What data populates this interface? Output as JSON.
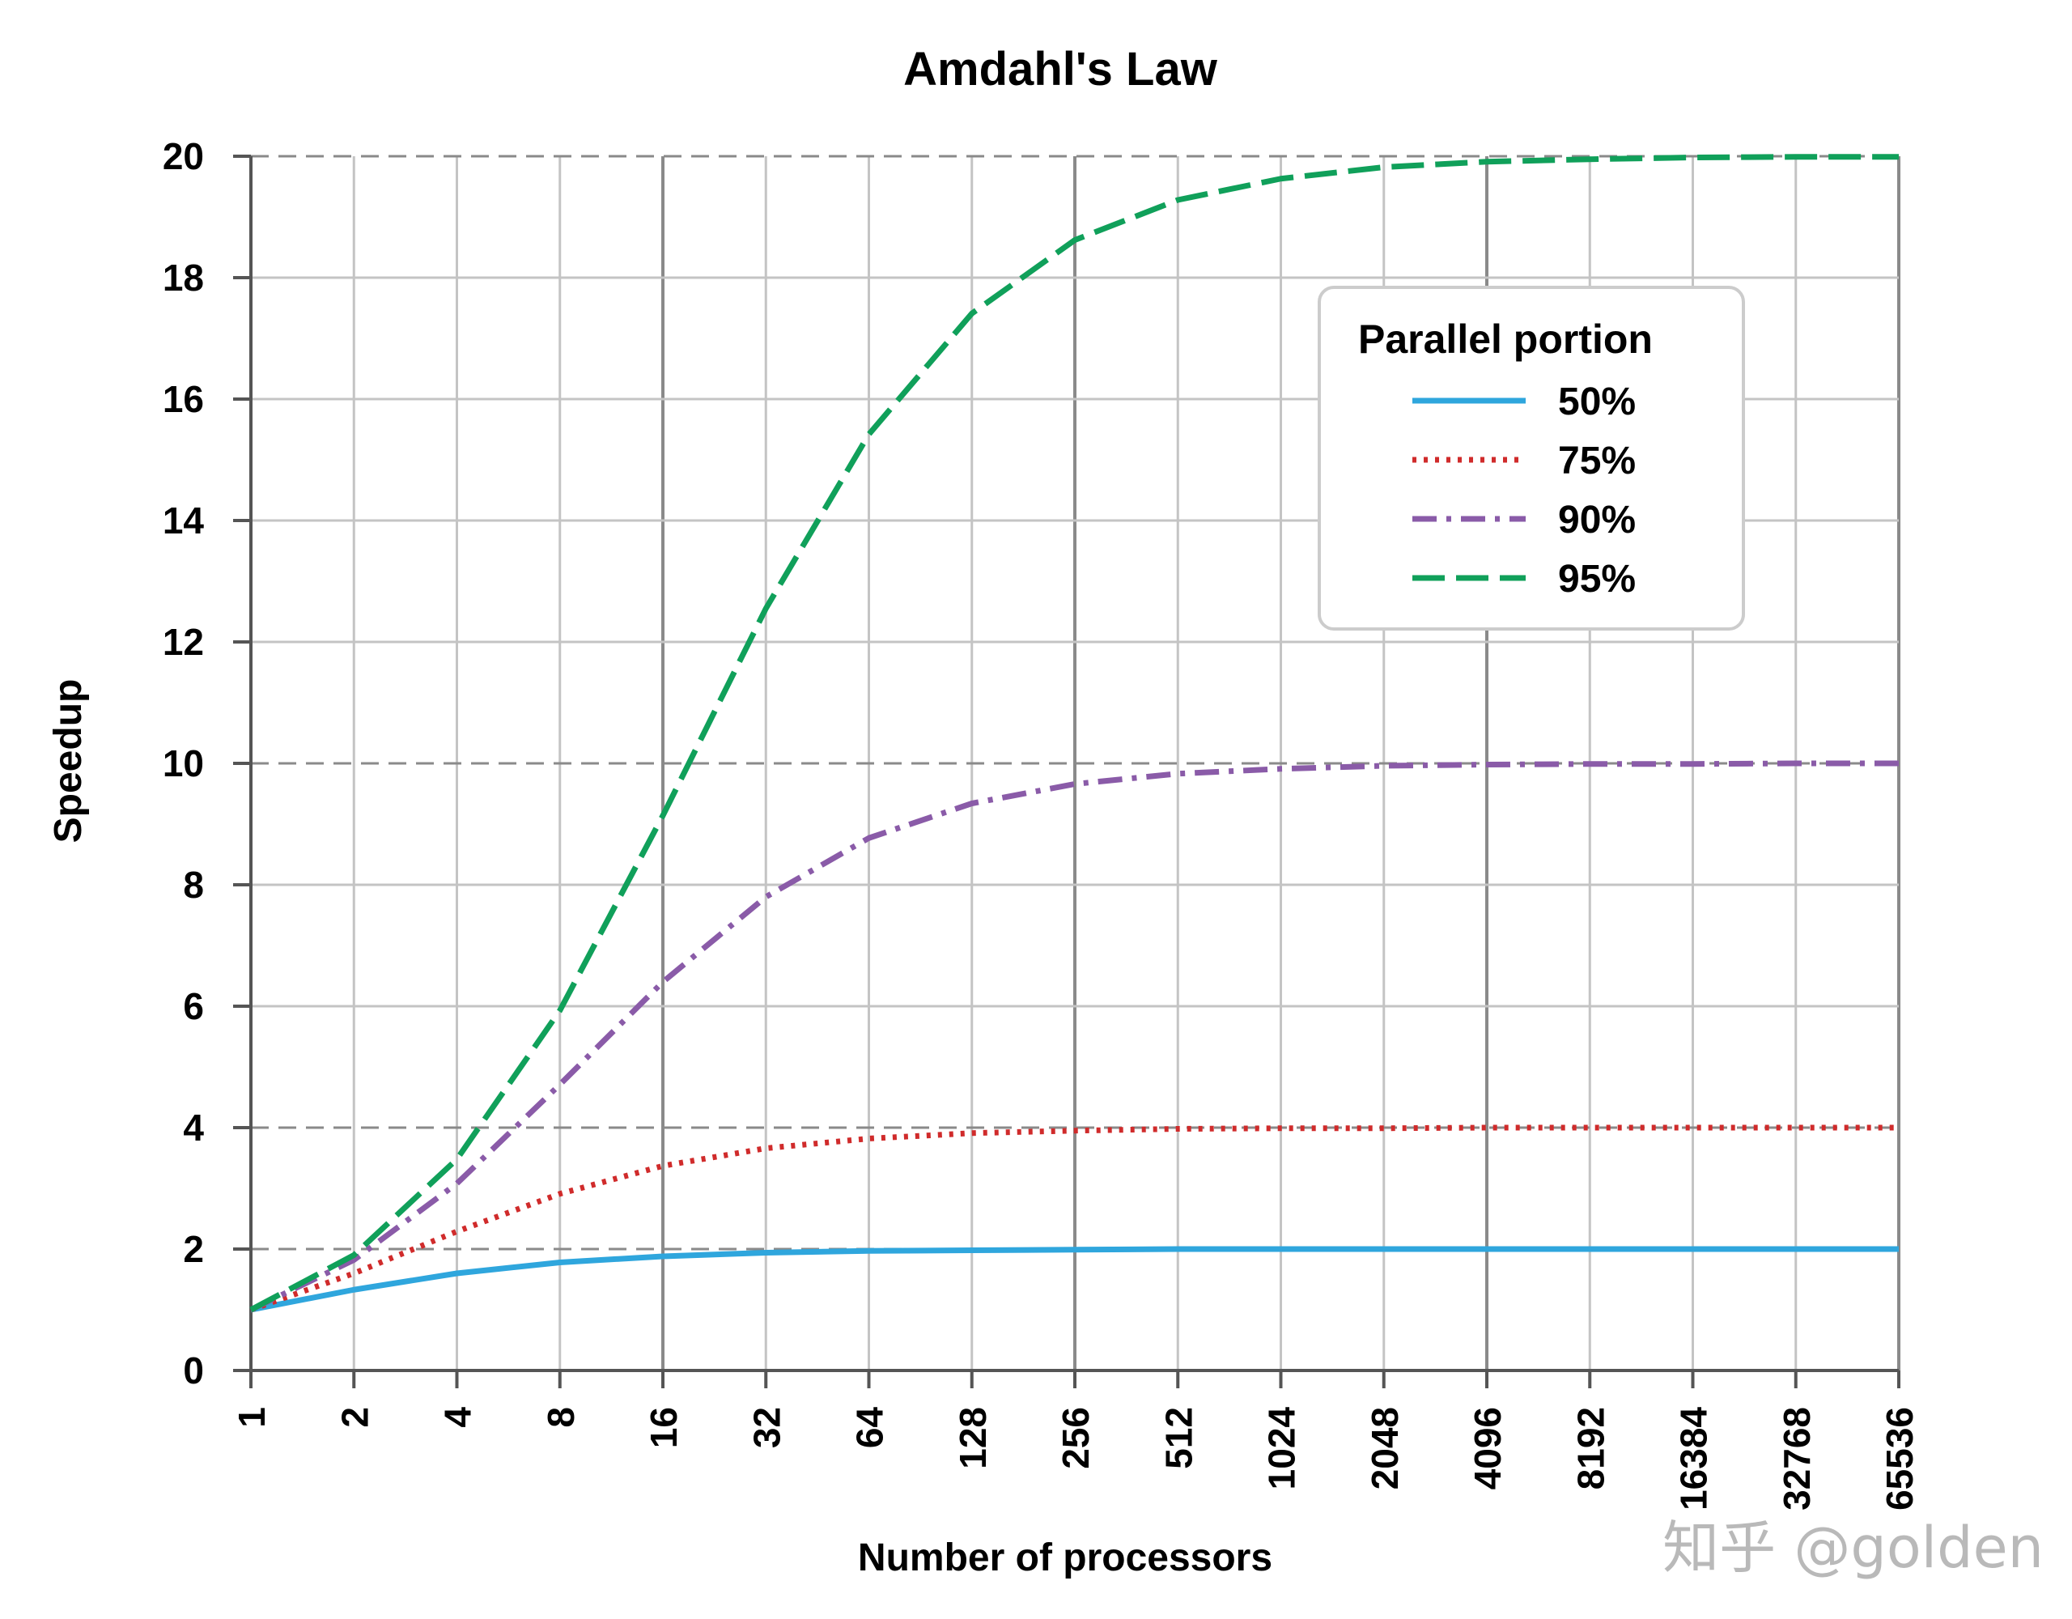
{
  "chart_data": {
    "type": "line",
    "title": "Amdahl's Law",
    "xlabel": "Number of processors",
    "ylabel": "Speedup",
    "x_scale": "log2",
    "x": [
      1,
      2,
      4,
      8,
      16,
      32,
      64,
      128,
      256,
      512,
      1024,
      2048,
      4096,
      8192,
      16384,
      32768,
      65536
    ],
    "x_tick_labels": [
      "1",
      "2",
      "4",
      "8",
      "16",
      "32",
      "64",
      "128",
      "256",
      "512",
      "1024",
      "2048",
      "4096",
      "8192",
      "16384",
      "32768",
      "65536"
    ],
    "ylim": [
      0,
      20
    ],
    "y_ticks": [
      0,
      2,
      4,
      6,
      8,
      10,
      12,
      14,
      16,
      18,
      20
    ],
    "grid": true,
    "legend": {
      "title": "Parallel portion",
      "placement": "top-right"
    },
    "series": [
      {
        "name": "50%",
        "color": "#2fa6dd",
        "dash": "solid",
        "values": [
          1.0,
          1.33,
          1.6,
          1.78,
          1.88,
          1.94,
          1.97,
          1.98,
          1.99,
          2.0,
          2.0,
          2.0,
          2.0,
          2.0,
          2.0,
          2.0,
          2.0
        ]
      },
      {
        "name": "75%",
        "color": "#d02b2b",
        "dash": "dotted",
        "values": [
          1.0,
          1.6,
          2.29,
          2.91,
          3.37,
          3.66,
          3.82,
          3.91,
          3.95,
          3.98,
          3.99,
          3.99,
          4.0,
          4.0,
          4.0,
          4.0,
          4.0
        ]
      },
      {
        "name": "90%",
        "color": "#8a5ba8",
        "dash": "dashdot",
        "values": [
          1.0,
          1.82,
          3.08,
          4.71,
          6.4,
          7.8,
          8.77,
          9.34,
          9.66,
          9.83,
          9.91,
          9.96,
          9.98,
          9.99,
          9.99,
          10.0,
          10.0
        ]
      },
      {
        "name": "95%",
        "color": "#10a05a",
        "dash": "dashed",
        "values": [
          1.0,
          1.9,
          3.48,
          5.93,
          9.14,
          12.55,
          15.42,
          17.41,
          18.62,
          19.28,
          19.63,
          19.82,
          19.91,
          19.95,
          19.98,
          19.99,
          19.99
        ]
      }
    ]
  },
  "watermark": "知乎 @golden"
}
